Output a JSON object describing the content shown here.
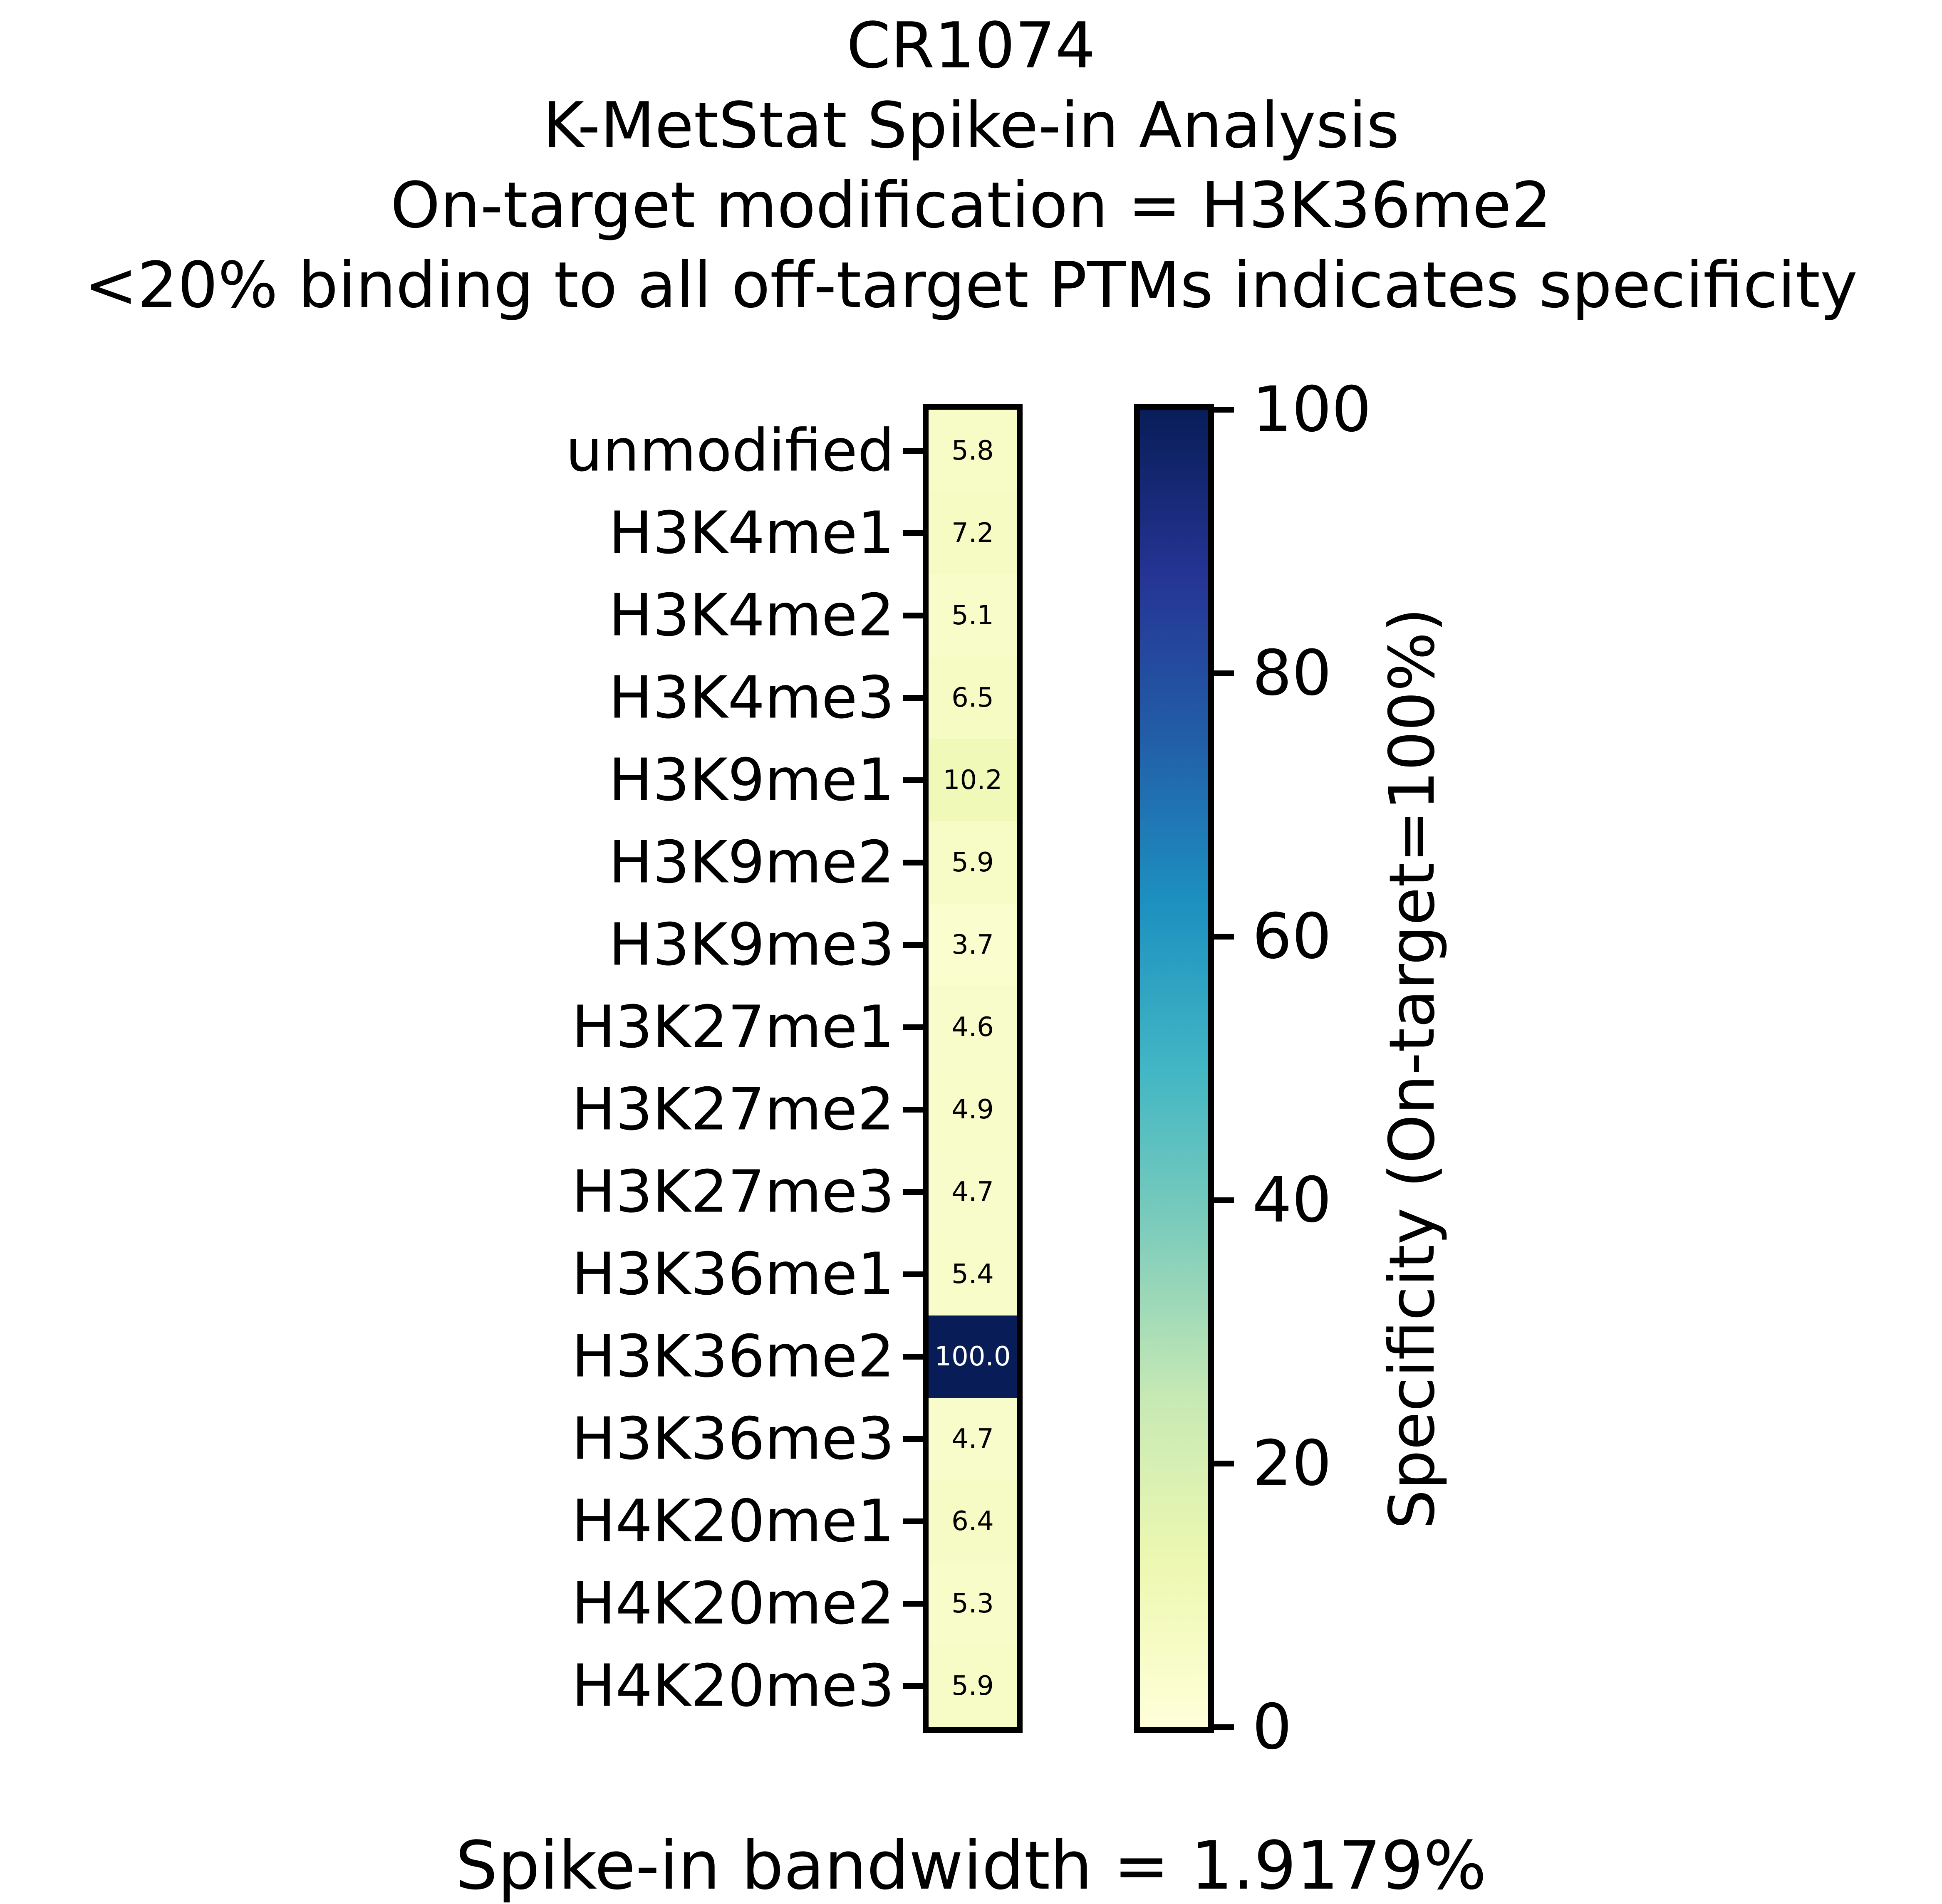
{
  "header": {
    "lines": [
      "CR1074",
      "K-MetStat Spike-in Analysis",
      "On-target modification = H3K36me2",
      "<20% binding to all off-target PTMs indicates specificity"
    ]
  },
  "chart_data": {
    "type": "heatmap",
    "title": "CR1074 K-MetStat Spike-in Analysis",
    "on_target_modification": "H3K36me2",
    "value_unit": "% (On-target=100%)",
    "vmin": 0,
    "vmax": 100,
    "rows": [
      {
        "label": "unmodified",
        "value": 5.8
      },
      {
        "label": "H3K4me1",
        "value": 7.2
      },
      {
        "label": "H3K4me2",
        "value": 5.1
      },
      {
        "label": "H3K4me3",
        "value": 6.5
      },
      {
        "label": "H3K9me1",
        "value": 10.2
      },
      {
        "label": "H3K9me2",
        "value": 5.9
      },
      {
        "label": "H3K9me3",
        "value": 3.7
      },
      {
        "label": "H3K27me1",
        "value": 4.6
      },
      {
        "label": "H3K27me2",
        "value": 4.9
      },
      {
        "label": "H3K27me3",
        "value": 4.7
      },
      {
        "label": "H3K36me1",
        "value": 5.4
      },
      {
        "label": "H3K36me2",
        "value": 100.0
      },
      {
        "label": "H3K36me3",
        "value": 4.7
      },
      {
        "label": "H4K20me1",
        "value": 6.4
      },
      {
        "label": "H4K20me2",
        "value": 5.3
      },
      {
        "label": "H4K20me3",
        "value": 5.9
      }
    ],
    "colormap": {
      "name": "YlGnBu",
      "stops": [
        "#ffffd9",
        "#edf8b1",
        "#c7e9b4",
        "#7fcdbb",
        "#41b6c4",
        "#1d91c0",
        "#225ea8",
        "#253494",
        "#081d58"
      ]
    },
    "annotation_text_dark": "#000000",
    "annotation_text_light": "#ffffff",
    "frame_color": "#000000"
  },
  "colorbar": {
    "label": "Specificity (On-target=100%)",
    "ticks": [
      "100",
      "80",
      "60",
      "40",
      "20",
      "0"
    ]
  },
  "footer": {
    "caption": "Spike-in bandwidth = 1.9179%"
  }
}
